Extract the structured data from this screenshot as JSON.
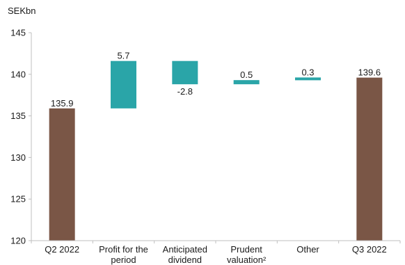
{
  "chart_data": {
    "type": "bar",
    "variant": "waterfall",
    "unit_label": "SEKbn",
    "categories": [
      [
        "Q2 2022"
      ],
      [
        "Profit for the",
        "period"
      ],
      [
        "Anticipated",
        "dividend"
      ],
      [
        "Prudent",
        "valuation²"
      ],
      [
        "Other"
      ],
      [
        "Q3 2022"
      ]
    ],
    "bars": [
      {
        "kind": "total",
        "start": 120,
        "end": 135.9,
        "label": "135.9"
      },
      {
        "kind": "change",
        "start": 135.9,
        "end": 141.6,
        "label": "5.7"
      },
      {
        "kind": "change",
        "start": 141.6,
        "end": 138.8,
        "label": "-2.8"
      },
      {
        "kind": "change",
        "start": 138.8,
        "end": 139.3,
        "label": "0.5"
      },
      {
        "kind": "change",
        "start": 139.3,
        "end": 139.6,
        "label": "0.3"
      },
      {
        "kind": "total",
        "start": 120,
        "end": 139.6,
        "label": "139.6"
      }
    ],
    "yticks": [
      "120",
      "125",
      "130",
      "135",
      "140",
      "145"
    ],
    "ylim": [
      120,
      145
    ],
    "grid": false,
    "colors": {
      "total": "#7a5646",
      "change": "#2aa5a8",
      "axis": "#bfbfbf"
    }
  }
}
